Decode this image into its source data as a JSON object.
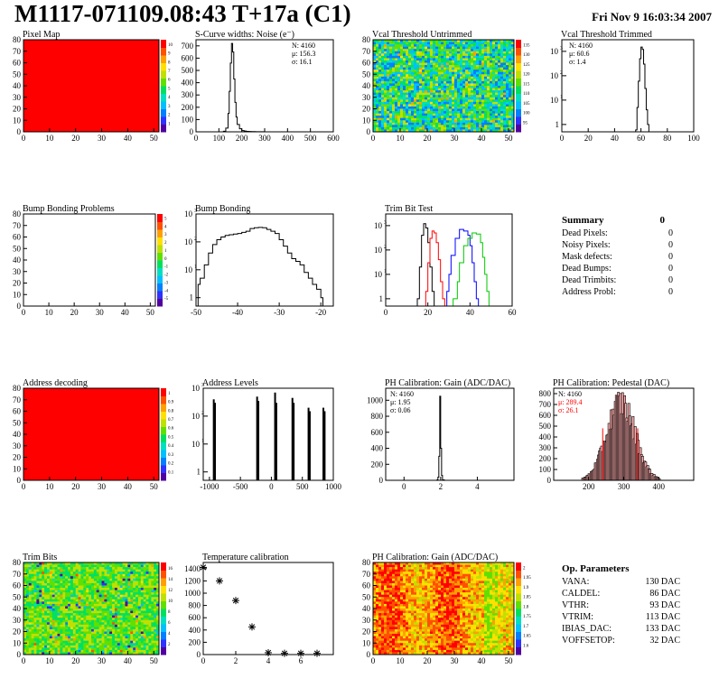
{
  "page": {
    "title": "M1117-071109.08:43 T+17a (C1)",
    "date": "Fri Nov  9 16:03:34 2007"
  },
  "summary": {
    "title": "Summary",
    "value": "0",
    "rows": [
      {
        "label": "Dead Pixels:",
        "value": "0"
      },
      {
        "label": "Noisy Pixels:",
        "value": "0"
      },
      {
        "label": "Mask defects:",
        "value": "0"
      },
      {
        "label": "Dead Bumps:",
        "value": "0"
      },
      {
        "label": "Dead Trimbits:",
        "value": "0"
      },
      {
        "label": "Address Probl:",
        "value": "0"
      }
    ]
  },
  "op_params": {
    "title": "Op. Parameters",
    "rows": [
      {
        "label": "VANA:",
        "value": "130 DAC"
      },
      {
        "label": "CALDEL:",
        "value": "86 DAC"
      },
      {
        "label": "VTHR:",
        "value": "93 DAC"
      },
      {
        "label": "VTRIM:",
        "value": "113 DAC"
      },
      {
        "label": "IBIAS_DAC:",
        "value": "133 DAC"
      },
      {
        "label": "VOFFSETOP:",
        "value": "32 DAC"
      }
    ]
  },
  "colors": {
    "red": "#ff0000",
    "green": "#00c800",
    "blue": "#0000ff",
    "black": "#000000"
  },
  "chart_data": [
    {
      "id": "pixel_map",
      "type": "heatmap",
      "title": "Pixel Map",
      "fill": "uniform-red",
      "xlim": [
        0,
        52
      ],
      "ylim": [
        0,
        80
      ],
      "xticks": [
        0,
        10,
        20,
        30,
        40,
        50
      ],
      "yticks": [
        0,
        10,
        20,
        30,
        40,
        50,
        60,
        70,
        80
      ],
      "zticks": [
        "1",
        "2",
        "3",
        "4",
        "5",
        "6",
        "7",
        "8",
        "9",
        "10"
      ]
    },
    {
      "id": "scurve",
      "type": "bar",
      "title": "S-Curve widths: Noise (e⁻)",
      "xlim": [
        0,
        600
      ],
      "ylim": [
        0,
        750
      ],
      "xticks": [
        0,
        100,
        200,
        300,
        400,
        500,
        600
      ],
      "yticks": [
        0,
        100,
        200,
        300,
        400,
        500,
        600,
        700
      ],
      "stats": [
        "N: 4160",
        "μ: 156.3",
        "σ: 16.1"
      ],
      "series": [
        {
          "x": [
            110,
            120,
            130,
            140,
            145,
            150,
            155,
            160,
            165,
            170,
            175,
            180,
            190,
            200,
            210,
            220,
            230,
            240,
            250,
            260,
            270,
            280,
            290,
            300
          ],
          "y": [
            0,
            5,
            30,
            150,
            330,
            560,
            720,
            650,
            430,
            240,
            120,
            60,
            25,
            10,
            6,
            4,
            3,
            2,
            2,
            1,
            1,
            1,
            1,
            0
          ]
        }
      ]
    },
    {
      "id": "vcal_untrimmed",
      "type": "heatmap",
      "title": "Vcal Threshold Untrimmed",
      "fill": "noise-bluegreen",
      "xlim": [
        0,
        52
      ],
      "ylim": [
        0,
        80
      ],
      "xticks": [
        0,
        10,
        20,
        30,
        40,
        50
      ],
      "yticks": [
        0,
        10,
        20,
        30,
        40,
        50,
        60,
        70,
        80
      ],
      "zticks": [
        "95",
        "100",
        "105",
        "110",
        "115",
        "120",
        "125",
        "130",
        "135"
      ]
    },
    {
      "id": "vcal_trimmed",
      "type": "bar",
      "title": "Vcal Threshold Trimmed",
      "logy": true,
      "xlim": [
        0,
        100
      ],
      "ylim": [
        0.5,
        3000
      ],
      "xticks": [
        0,
        20,
        40,
        60,
        80,
        100
      ],
      "stats": [
        "N: 4160",
        "μ: 60.6",
        "σ: 1.4"
      ],
      "series": [
        {
          "x": [
            56,
            57,
            58,
            59,
            60,
            61,
            62,
            63,
            64,
            65,
            66
          ],
          "y": [
            0.6,
            5,
            60,
            500,
            1500,
            1200,
            300,
            30,
            4,
            1,
            0.6
          ]
        }
      ]
    },
    {
      "id": "bump_problems",
      "type": "heatmap",
      "title": "Bump Bonding Problems",
      "fill": "empty",
      "xlim": [
        0,
        52
      ],
      "ylim": [
        0,
        80
      ],
      "xticks": [
        0,
        10,
        20,
        30,
        40,
        50
      ],
      "yticks": [
        0,
        10,
        20,
        30,
        40,
        50,
        60,
        70,
        80
      ],
      "zticks": [
        "-5",
        "-4",
        "-3",
        "-2",
        "-1",
        "0",
        "1",
        "2",
        "3",
        "4",
        "5"
      ]
    },
    {
      "id": "bump_bonding",
      "type": "bar",
      "title": "Bump Bonding",
      "logy": true,
      "xlim": [
        -50,
        -17
      ],
      "ylim": [
        0.5,
        1000
      ],
      "xticks": [
        -50,
        -40,
        -30,
        -20
      ],
      "series": [
        {
          "x": [
            -49.5,
            -49,
            -48,
            -47,
            -46,
            -45,
            -44,
            -43,
            -42,
            -41,
            -40,
            -39,
            -38,
            -37,
            -36,
            -35,
            -34,
            -33,
            -32,
            -31,
            -30,
            -29,
            -28,
            -27,
            -26,
            -25,
            -24,
            -23,
            -22,
            -21,
            -20,
            -19.5
          ],
          "y": [
            3,
            5,
            15,
            40,
            80,
            120,
            150,
            170,
            180,
            190,
            200,
            220,
            240,
            300,
            320,
            330,
            320,
            280,
            240,
            200,
            120,
            70,
            40,
            25,
            20,
            15,
            8,
            5,
            3,
            2,
            1,
            0.6
          ]
        }
      ]
    },
    {
      "id": "trim_bit_test",
      "type": "line",
      "title": "Trim Bit Test",
      "logy": true,
      "xlim": [
        0,
        60
      ],
      "ylim": [
        0.5,
        3000
      ],
      "xticks": [
        0,
        20,
        40,
        60
      ],
      "series": [
        {
          "color": "black",
          "x": [
            15,
            16,
            17,
            18,
            19,
            20,
            21,
            22,
            23
          ],
          "y": [
            1,
            20,
            400,
            1200,
            800,
            200,
            20,
            2,
            0.6
          ]
        },
        {
          "color": "red",
          "x": [
            19,
            20,
            21,
            22,
            23,
            24,
            25,
            26,
            27,
            28
          ],
          "y": [
            2,
            30,
            300,
            600,
            500,
            200,
            40,
            5,
            1,
            0.6
          ]
        },
        {
          "color": "blue",
          "x": [
            29,
            30,
            31,
            33,
            35,
            37,
            39,
            40,
            41,
            42,
            43,
            44
          ],
          "y": [
            2,
            10,
            60,
            300,
            700,
            600,
            400,
            150,
            30,
            5,
            1,
            0.6
          ]
        },
        {
          "color": "green",
          "x": [
            32,
            34,
            35,
            37,
            39,
            41,
            43,
            45,
            46,
            47,
            48,
            49
          ],
          "y": [
            1,
            5,
            30,
            150,
            300,
            500,
            450,
            200,
            50,
            10,
            2,
            0.6
          ]
        }
      ]
    },
    {
      "id": "address_decoding",
      "type": "heatmap",
      "title": "Address decoding",
      "fill": "uniform-red",
      "xlim": [
        0,
        52
      ],
      "ylim": [
        0,
        80
      ],
      "xticks": [
        0,
        10,
        20,
        30,
        40,
        50
      ],
      "yticks": [
        0,
        10,
        20,
        30,
        40,
        50,
        60,
        70,
        80
      ],
      "zticks": [
        "0.1",
        "0.2",
        "0.3",
        "0.4",
        "0.5",
        "0.6",
        "0.7",
        "0.8",
        "0.9",
        "1"
      ]
    },
    {
      "id": "address_levels",
      "type": "bar",
      "title": "Address Levels",
      "logy": true,
      "xlim": [
        -1100,
        1000
      ],
      "ylim": [
        0.5,
        1000
      ],
      "xticks": [
        -1000,
        -500,
        0,
        500,
        1000
      ],
      "spikes": [
        {
          "x": -930,
          "y": 400
        },
        {
          "x": -910,
          "y": 300
        },
        {
          "x": -230,
          "y": 500
        },
        {
          "x": -210,
          "y": 350
        },
        {
          "x": 60,
          "y": 700
        },
        {
          "x": 80,
          "y": 300
        },
        {
          "x": 340,
          "y": 450
        },
        {
          "x": 360,
          "y": 300
        },
        {
          "x": 600,
          "y": 200
        },
        {
          "x": 620,
          "y": 150
        },
        {
          "x": 840,
          "y": 200
        },
        {
          "x": 860,
          "y": 150
        }
      ]
    },
    {
      "id": "ph_gain_hist",
      "type": "bar",
      "title": "PH Calibration: Gain (ADC/DAC)",
      "xlim": [
        -1,
        6
      ],
      "ylim": [
        0,
        1150
      ],
      "xticks": [
        0,
        2,
        4
      ],
      "yticks": [
        0,
        200,
        400,
        600,
        800,
        1000
      ],
      "stats": [
        "N: 4160",
        "μ: 1.95",
        "σ: 0.06"
      ],
      "series": [
        {
          "x": [
            1.7,
            1.8,
            1.85,
            1.9,
            1.95,
            2.0,
            2.05,
            2.1,
            2.2
          ],
          "y": [
            0,
            5,
            40,
            300,
            1050,
            400,
            60,
            5,
            0
          ]
        }
      ]
    },
    {
      "id": "ph_pedestal",
      "type": "bar",
      "title": "PH Calibration: Pedestal (DAC)",
      "xlim": [
        100,
        500
      ],
      "ylim": [
        0,
        850
      ],
      "xticks": [
        200,
        300,
        400
      ],
      "yticks": [
        0,
        100,
        200,
        300,
        400,
        500,
        600,
        700,
        800
      ],
      "stats": [
        "N: 4160",
        "μ: 289.4",
        "σ: 26.1"
      ],
      "cut_lines": [
        240,
        340
      ]
    },
    {
      "id": "trim_bits_map",
      "type": "heatmap",
      "title": "Trim Bits",
      "fill": "noise-green",
      "xlim": [
        0,
        52
      ],
      "ylim": [
        0,
        80
      ],
      "xticks": [
        0,
        10,
        20,
        30,
        40,
        50
      ],
      "yticks": [
        0,
        10,
        20,
        30,
        40,
        50,
        60,
        70,
        80
      ],
      "zticks": [
        "2",
        "4",
        "6",
        "8",
        "10",
        "12",
        "14",
        "16"
      ]
    },
    {
      "id": "temperature",
      "type": "scatter",
      "title": "Temperature calibration",
      "xlim": [
        0,
        8
      ],
      "ylim": [
        0,
        1500
      ],
      "xticks": [
        0,
        2,
        4,
        6
      ],
      "yticks": [
        0,
        200,
        400,
        600,
        800,
        1000,
        1200,
        1400
      ],
      "series": [
        {
          "x": [
            0,
            1,
            2,
            3,
            4,
            5,
            6,
            7
          ],
          "y": [
            1420,
            1200,
            880,
            450,
            30,
            20,
            20,
            20
          ]
        }
      ]
    },
    {
      "id": "ph_gain_map",
      "type": "heatmap",
      "title": "PH Calibration: Gain (ADC/DAC)",
      "fill": "noise-redyellow",
      "xlim": [
        0,
        52
      ],
      "ylim": [
        0,
        80
      ],
      "xticks": [
        0,
        10,
        20,
        30,
        40,
        50
      ],
      "yticks": [
        0,
        10,
        20,
        30,
        40,
        50,
        60,
        70,
        80
      ],
      "zticks": [
        "1.6",
        "1.65",
        "1.7",
        "1.75",
        "1.8",
        "1.85",
        "1.9",
        "1.95",
        "2"
      ]
    }
  ]
}
